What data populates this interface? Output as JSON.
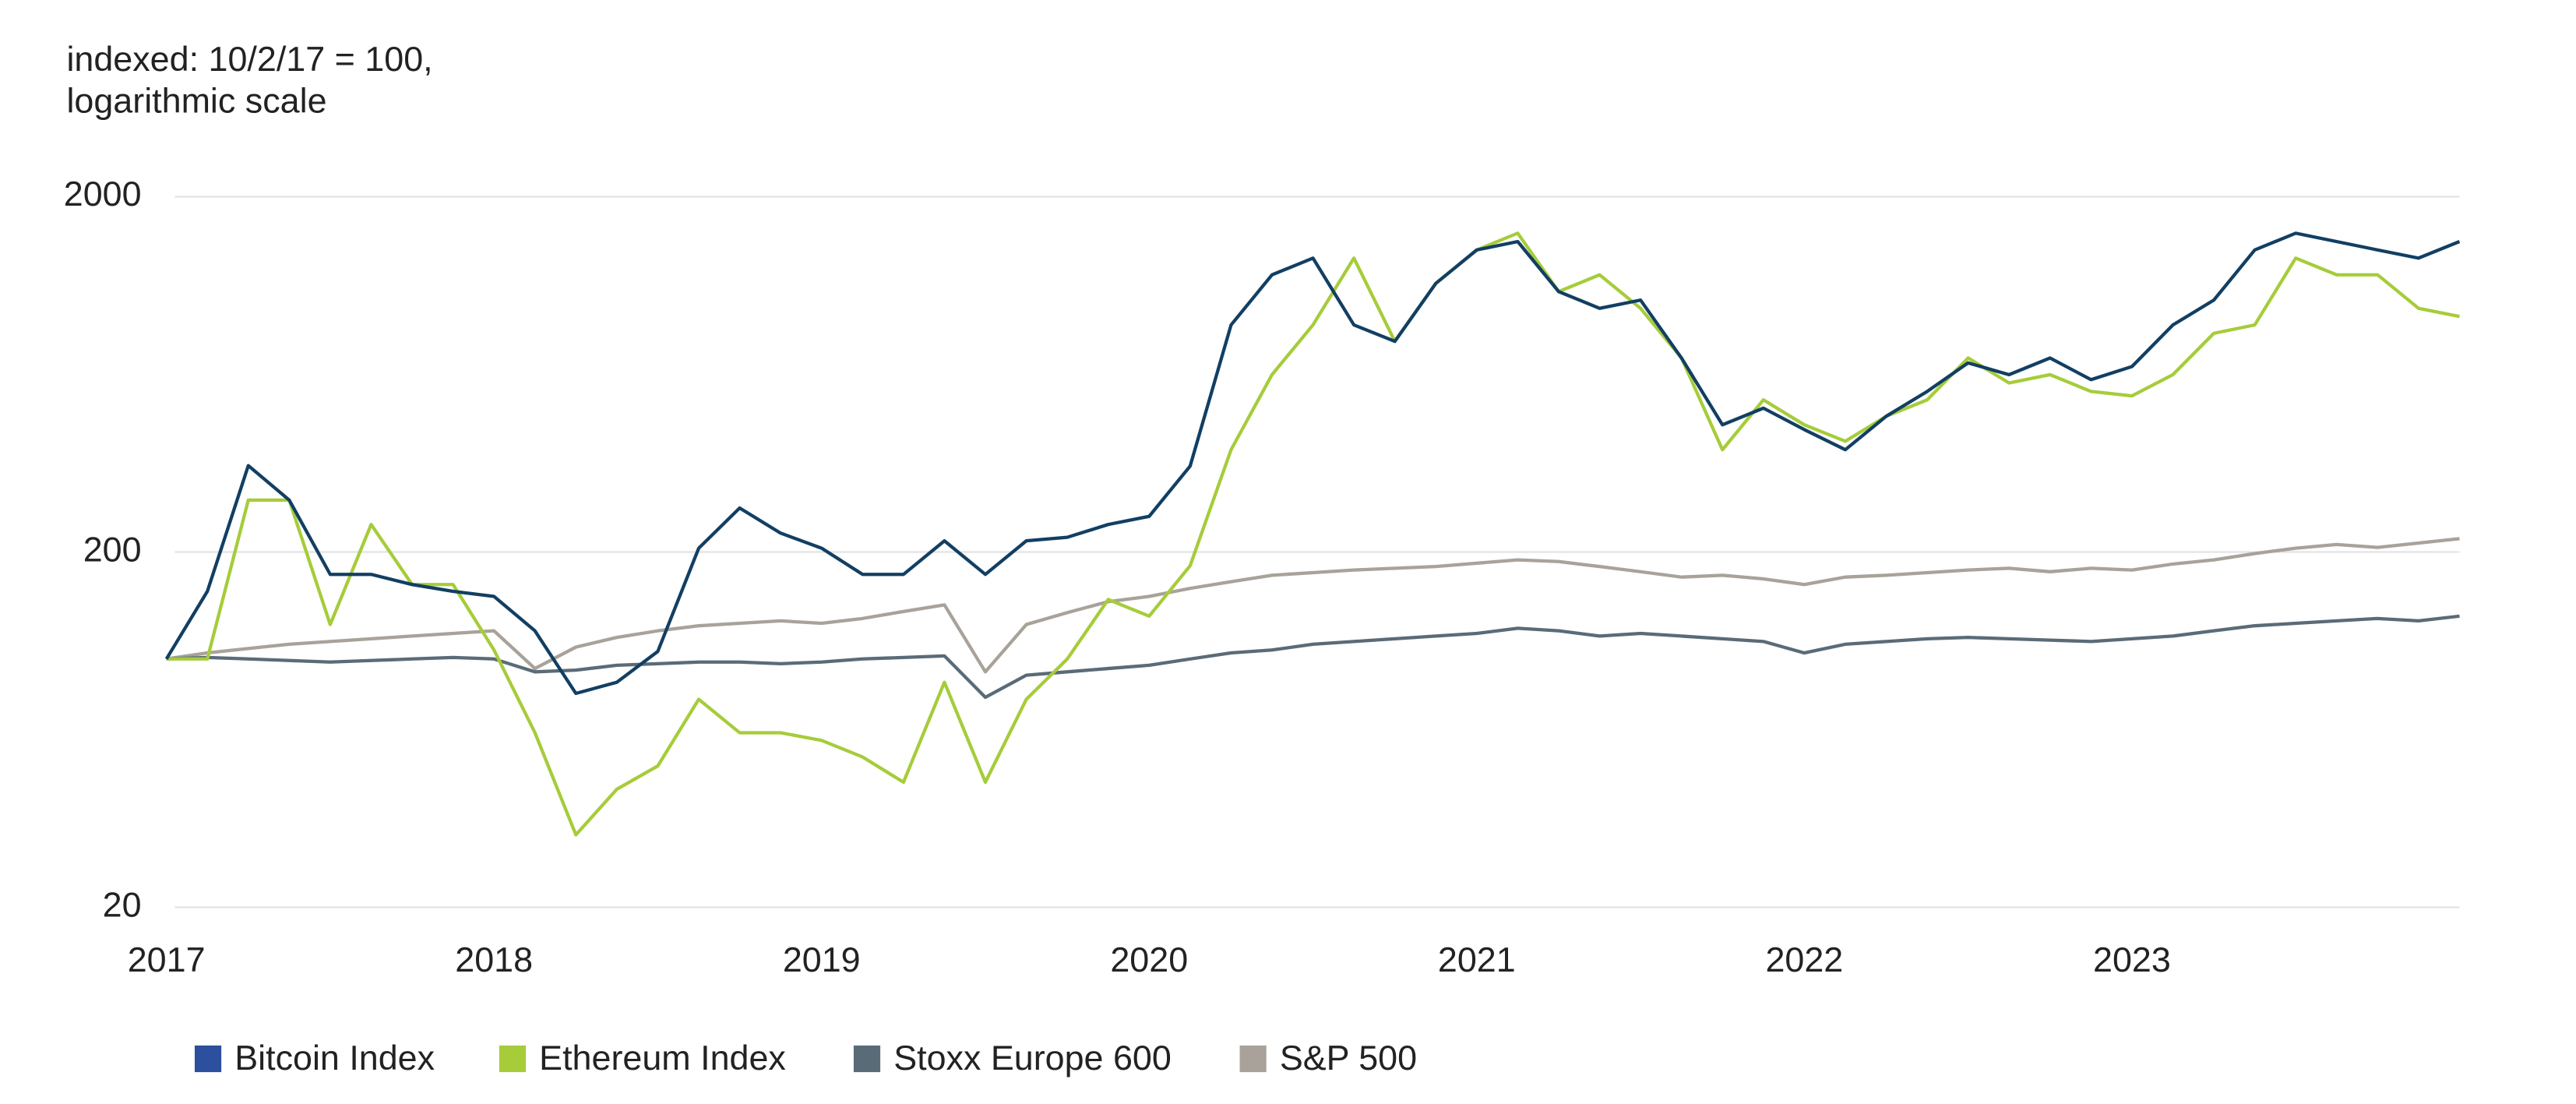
{
  "chart_data": {
    "type": "line",
    "subtitle": [
      "indexed: 10/2/17 = 100,",
      "logarithmic scale"
    ],
    "x": [
      2017,
      2017.125,
      2017.25,
      2017.375,
      2017.5,
      2017.625,
      2017.75,
      2017.875,
      2018,
      2018.125,
      2018.25,
      2018.375,
      2018.5,
      2018.625,
      2018.75,
      2018.875,
      2019,
      2019.125,
      2019.25,
      2019.375,
      2019.5,
      2019.625,
      2019.75,
      2019.875,
      2020,
      2020.125,
      2020.25,
      2020.375,
      2020.5,
      2020.625,
      2020.75,
      2020.875,
      2021,
      2021.125,
      2021.25,
      2021.375,
      2021.5,
      2021.625,
      2021.75,
      2021.875,
      2022,
      2022.125,
      2022.25,
      2022.375,
      2022.5,
      2022.625,
      2022.75,
      2022.875,
      2023,
      2023.125,
      2023.25,
      2023.375,
      2023.5,
      2023.625,
      2023.75,
      2023.875,
      2024
    ],
    "series": [
      {
        "name": "Bitcoin Index",
        "color": "#123f63",
        "legend_color": "#2c4f9e",
        "values": [
          100,
          155,
          350,
          280,
          173,
          173,
          162,
          155,
          150,
          120,
          80,
          86,
          105,
          205,
          266,
          226,
          205,
          173,
          173,
          215,
          173,
          215,
          220,
          239,
          252,
          349,
          871,
          1205,
          1343,
          871,
          783,
          1140,
          1416,
          1495,
          1081,
          970,
          1023,
          703,
          456,
          508,
          442,
          388,
          482,
          566,
          681,
          631,
          703,
          611,
          665,
          871,
          1023,
          1416,
          1578,
          1495,
          1416,
          1343,
          1495
        ]
      },
      {
        "name": "Ethereum Index",
        "color": "#a6cc3a",
        "legend_color": "#a6cc3a",
        "values": [
          100,
          100,
          280,
          280,
          125,
          239,
          162,
          162,
          106,
          62,
          32,
          43,
          50,
          77,
          62,
          62,
          59,
          53,
          45,
          86,
          45,
          77,
          100,
          147,
          132,
          183,
          388,
          631,
          871,
          1343,
          783,
          1140,
          1416,
          1578,
          1081,
          1205,
          970,
          703,
          388,
          536,
          456,
          410,
          482,
          536,
          703,
          598,
          631,
          566,
          550,
          631,
          825,
          871,
          1343,
          1205,
          1205,
          970,
          920
        ]
      },
      {
        "name": "Stoxx Europe 600",
        "color": "#5a6b78",
        "legend_color": "#5a6b78",
        "values": [
          100,
          101,
          100,
          99,
          98,
          99,
          100,
          101,
          100,
          92,
          93,
          96,
          97,
          98,
          98,
          97,
          98,
          100,
          101,
          102,
          78,
          90,
          92,
          94,
          96,
          100,
          104,
          106,
          110,
          112,
          114,
          116,
          118,
          122,
          120,
          116,
          118,
          116,
          114,
          112,
          104,
          110,
          112,
          114,
          115,
          114,
          113,
          112,
          114,
          116,
          120,
          124,
          126,
          128,
          130,
          128,
          132
        ]
      },
      {
        "name": "S&P 500",
        "color": "#a8a29a",
        "legend_color": "#a8a29a",
        "values": [
          100,
          104,
          107,
          110,
          112,
          114,
          116,
          118,
          120,
          94,
          108,
          115,
          120,
          124,
          126,
          128,
          126,
          130,
          136,
          142,
          92,
          125,
          135,
          145,
          150,
          158,
          165,
          172,
          175,
          178,
          180,
          182,
          186,
          190,
          188,
          182,
          176,
          170,
          172,
          168,
          162,
          170,
          172,
          175,
          178,
          180,
          176,
          180,
          178,
          185,
          190,
          198,
          205,
          210,
          206,
          212,
          218
        ]
      }
    ],
    "xlim": [
      2017,
      2024
    ],
    "xticks": [
      2017,
      2018,
      2019,
      2020,
      2021,
      2022,
      2023
    ],
    "ylim": [
      20,
      2000
    ],
    "yticks": [
      20,
      200,
      2000
    ],
    "y_scale": "log",
    "grid": true,
    "legend": "bottom"
  }
}
